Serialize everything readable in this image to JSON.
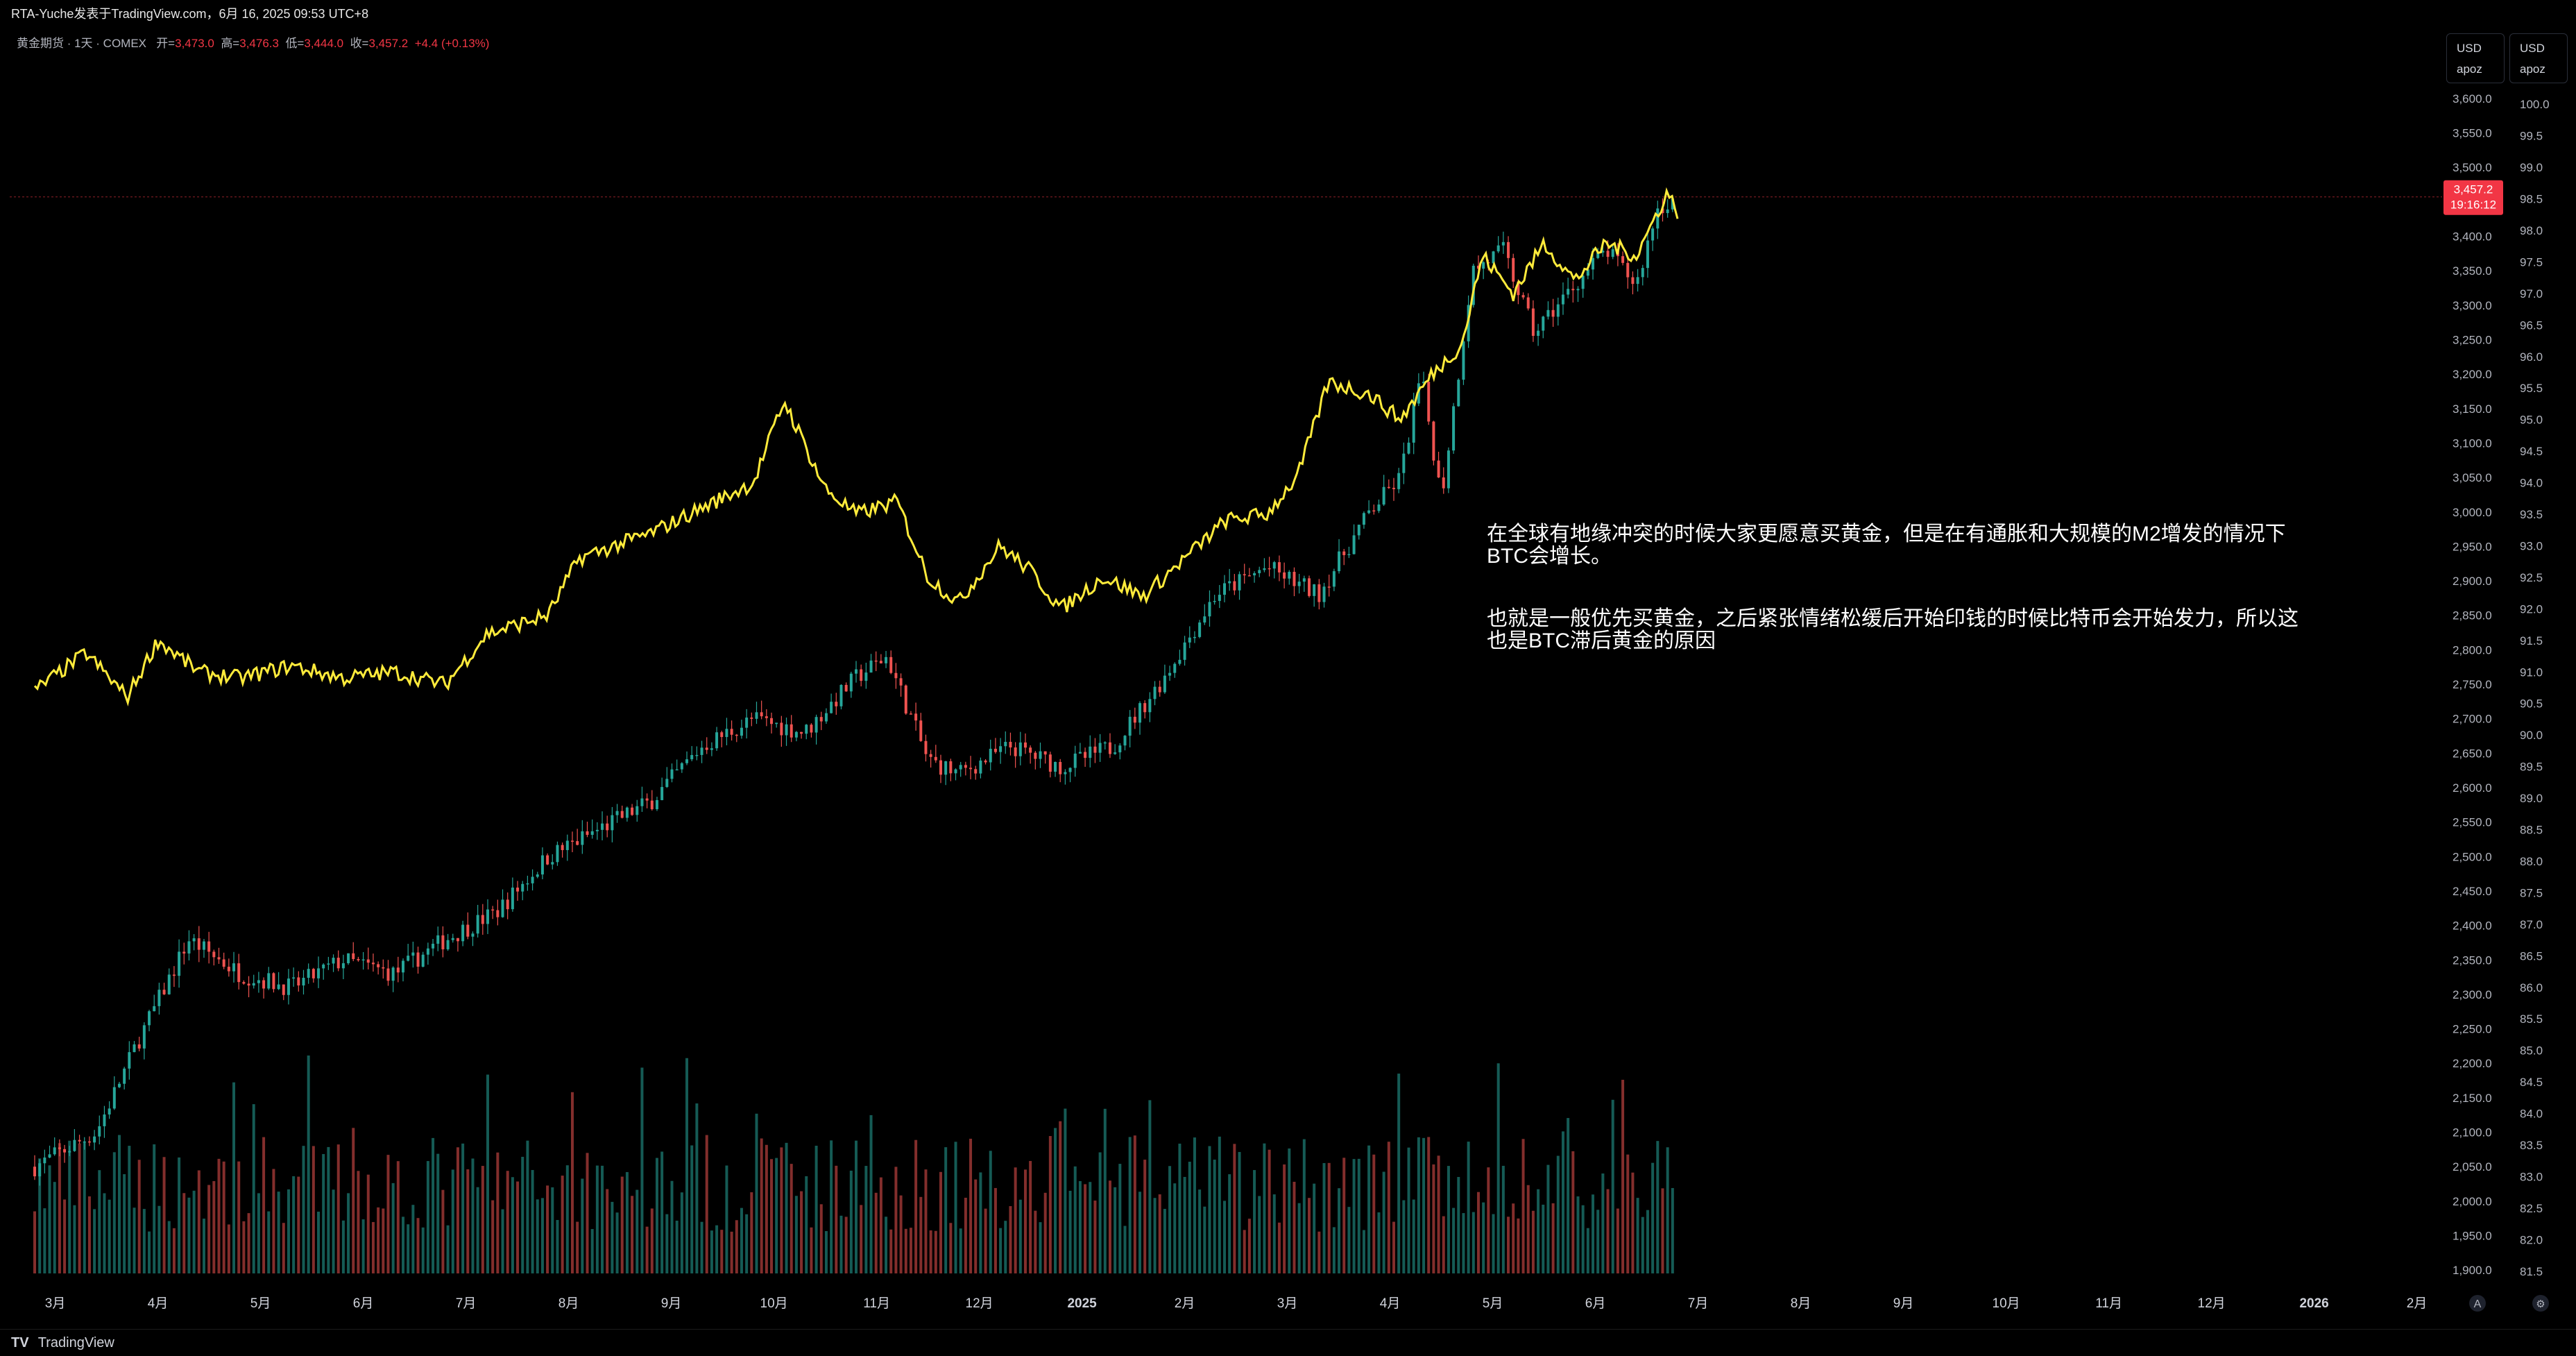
{
  "header": {
    "publisher": "RTA-Yuche发表于TradingView.com，6月 16, 2025 09:53 UTC+8"
  },
  "legend": {
    "symbol": "黄金期货 · 1天 · COMEX",
    "open_label": "开=",
    "open": "3,473.0",
    "high_label": "高=",
    "high": "3,476.3",
    "low_label": "低=",
    "low": "3,444.0",
    "close_label": "收=",
    "close": "3,457.2",
    "change": "+4.4 (+0.13%)"
  },
  "scale_buttons": [
    {
      "currency": "USD",
      "mode": "apoz"
    },
    {
      "currency": "USD",
      "mode": "apoz"
    }
  ],
  "price_tag": {
    "price": "3,457.2",
    "countdown": "19:16:12"
  },
  "annotation": {
    "para1": "在全球有地缘冲突的时候大家更愿意买黄金，但是在有通胀和大规模的M2增发的情况下BTC会增长。",
    "para2": "也就是一般优先买黄金，之后紧张情绪松缓后开始印钱的时候比特币会开始发力，所以这也是BTC滞后黄金的原因"
  },
  "footer": {
    "brand": "TradingView",
    "logo": "TV"
  },
  "colors": {
    "up": "#26a69a",
    "down": "#ef5350",
    "overlay": "#ffeb3b",
    "price_tag": "#f23645"
  },
  "chart_data": {
    "type": "candlestick",
    "series": [
      {
        "name": "黄金期货",
        "axis": "left-price"
      },
      {
        "name": "",
        "axis": "right-index",
        "style": "line"
      },
      {
        "name": "",
        "style": "volume"
      }
    ],
    "x_tick_labels": [
      "3月",
      "4月",
      "5月",
      "6月",
      "7月",
      "8月",
      "9月",
      "10月",
      "11月",
      "12月",
      "2025",
      "2月",
      "3月",
      "4月",
      "5月",
      "6月",
      "7月",
      "8月",
      "9月",
      "10月",
      "11月",
      "12月",
      "2026",
      "2月"
    ],
    "price_axis_ticks": [
      "3,600.0",
      "3,550.0",
      "3,500.0",
      "3,450.0",
      "3,400.0",
      "3,350.0",
      "3,300.0",
      "3,250.0",
      "3,200.0",
      "3,150.0",
      "3,100.0",
      "3,050.0",
      "3,000.0",
      "2,950.0",
      "2,900.0",
      "2,850.0",
      "2,800.0",
      "2,750.0",
      "2,700.0",
      "2,650.0",
      "2,600.0",
      "2,550.0",
      "2,500.0",
      "2,450.0",
      "2,400.0",
      "2,350.0",
      "2,300.0",
      "2,250.0",
      "2,200.0",
      "2,150.0",
      "2,100.0",
      "2,050.0",
      "2,000.0",
      "1,950.0",
      "1,900.0"
    ],
    "index_axis_ticks": [
      "100.0",
      "99.5",
      "99.0",
      "98.5",
      "98.0",
      "97.5",
      "97.0",
      "96.5",
      "96.0",
      "95.5",
      "95.0",
      "94.5",
      "94.0",
      "93.5",
      "93.0",
      "92.5",
      "92.0",
      "91.5",
      "91.0",
      "90.5",
      "90.0",
      "89.5",
      "89.0",
      "88.5",
      "88.0",
      "87.5",
      "87.0",
      "86.5",
      "86.0",
      "85.5",
      "85.0",
      "84.5",
      "84.0",
      "83.5",
      "83.0",
      "82.5",
      "82.0",
      "81.5"
    ],
    "price_ylim": [
      1880,
      3610
    ],
    "index_ylim": [
      81.3,
      100.2
    ],
    "gold_monthly_path": [
      {
        "m": 0.0,
        "p": 2050
      },
      {
        "m": 0.6,
        "p": 2100
      },
      {
        "m": 1.0,
        "p": 2230
      },
      {
        "m": 1.5,
        "p": 2380
      },
      {
        "m": 2.0,
        "p": 2330
      },
      {
        "m": 2.5,
        "p": 2310
      },
      {
        "m": 3.0,
        "p": 2350
      },
      {
        "m": 3.5,
        "p": 2330
      },
      {
        "m": 4.0,
        "p": 2380
      },
      {
        "m": 4.5,
        "p": 2420
      },
      {
        "m": 5.0,
        "p": 2500
      },
      {
        "m": 5.5,
        "p": 2540
      },
      {
        "m": 6.0,
        "p": 2580
      },
      {
        "m": 6.5,
        "p": 2660
      },
      {
        "m": 7.0,
        "p": 2700
      },
      {
        "m": 7.5,
        "p": 2680
      },
      {
        "m": 8.0,
        "p": 2760
      },
      {
        "m": 8.3,
        "p": 2790
      },
      {
        "m": 8.7,
        "p": 2640
      },
      {
        "m": 9.0,
        "p": 2620
      },
      {
        "m": 9.5,
        "p": 2660
      },
      {
        "m": 10.0,
        "p": 2630
      },
      {
        "m": 10.5,
        "p": 2660
      },
      {
        "m": 11.0,
        "p": 2760
      },
      {
        "m": 11.5,
        "p": 2880
      },
      {
        "m": 12.0,
        "p": 2920
      },
      {
        "m": 12.5,
        "p": 2880
      },
      {
        "m": 13.0,
        "p": 3000
      },
      {
        "m": 13.3,
        "p": 3050
      },
      {
        "m": 13.5,
        "p": 3200
      },
      {
        "m": 13.7,
        "p": 3020
      },
      {
        "m": 14.0,
        "p": 3350
      },
      {
        "m": 14.3,
        "p": 3380
      },
      {
        "m": 14.6,
        "p": 3260
      },
      {
        "m": 15.0,
        "p": 3330
      },
      {
        "m": 15.3,
        "p": 3380
      },
      {
        "m": 15.6,
        "p": 3330
      },
      {
        "m": 15.8,
        "p": 3440
      },
      {
        "m": 16.0,
        "p": 3457
      }
    ],
    "index_monthly_path": [
      {
        "m": 0.0,
        "v": 90.7
      },
      {
        "m": 0.5,
        "v": 91.3
      },
      {
        "m": 0.9,
        "v": 90.6
      },
      {
        "m": 1.2,
        "v": 91.5
      },
      {
        "m": 1.6,
        "v": 91.0
      },
      {
        "m": 2.0,
        "v": 90.9
      },
      {
        "m": 2.5,
        "v": 91.1
      },
      {
        "m": 3.0,
        "v": 90.9
      },
      {
        "m": 3.5,
        "v": 91.0
      },
      {
        "m": 4.0,
        "v": 90.8
      },
      {
        "m": 4.4,
        "v": 91.6
      },
      {
        "m": 5.0,
        "v": 91.9
      },
      {
        "m": 5.3,
        "v": 92.8
      },
      {
        "m": 6.0,
        "v": 93.2
      },
      {
        "m": 6.5,
        "v": 93.6
      },
      {
        "m": 7.0,
        "v": 94.0
      },
      {
        "m": 7.3,
        "v": 95.3
      },
      {
        "m": 7.7,
        "v": 93.9
      },
      {
        "m": 8.0,
        "v": 93.5
      },
      {
        "m": 8.4,
        "v": 93.7
      },
      {
        "m": 8.7,
        "v": 92.5
      },
      {
        "m": 9.0,
        "v": 92.1
      },
      {
        "m": 9.4,
        "v": 93.0
      },
      {
        "m": 9.7,
        "v": 92.6
      },
      {
        "m": 10.0,
        "v": 92.0
      },
      {
        "m": 10.4,
        "v": 92.5
      },
      {
        "m": 10.8,
        "v": 92.2
      },
      {
        "m": 11.2,
        "v": 92.8
      },
      {
        "m": 11.6,
        "v": 93.4
      },
      {
        "m": 12.0,
        "v": 93.5
      },
      {
        "m": 12.3,
        "v": 94.1
      },
      {
        "m": 12.6,
        "v": 95.6
      },
      {
        "m": 13.0,
        "v": 95.4
      },
      {
        "m": 13.3,
        "v": 95.0
      },
      {
        "m": 13.6,
        "v": 95.7
      },
      {
        "m": 13.9,
        "v": 96.2
      },
      {
        "m": 14.1,
        "v": 97.6
      },
      {
        "m": 14.4,
        "v": 97.0
      },
      {
        "m": 14.7,
        "v": 97.8
      },
      {
        "m": 15.0,
        "v": 97.2
      },
      {
        "m": 15.3,
        "v": 97.8
      },
      {
        "m": 15.6,
        "v": 97.6
      },
      {
        "m": 15.9,
        "v": 98.6
      },
      {
        "m": 16.0,
        "v": 98.3
      }
    ]
  }
}
